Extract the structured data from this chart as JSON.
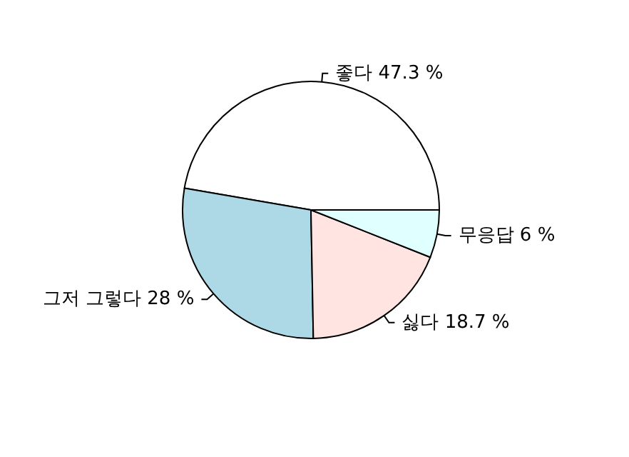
{
  "chart_data": {
    "type": "pie",
    "categories": [
      "좋다",
      "그저 그렇다",
      "싫다",
      "무응답"
    ],
    "values": [
      47.3,
      28,
      18.7,
      6
    ],
    "value_labels": [
      "47.3 %",
      "28 %",
      "18.7 %",
      "6 %"
    ],
    "colors": [
      "#ffffff",
      "#add8e6",
      "#ffe4e1",
      "#e0ffff"
    ]
  }
}
